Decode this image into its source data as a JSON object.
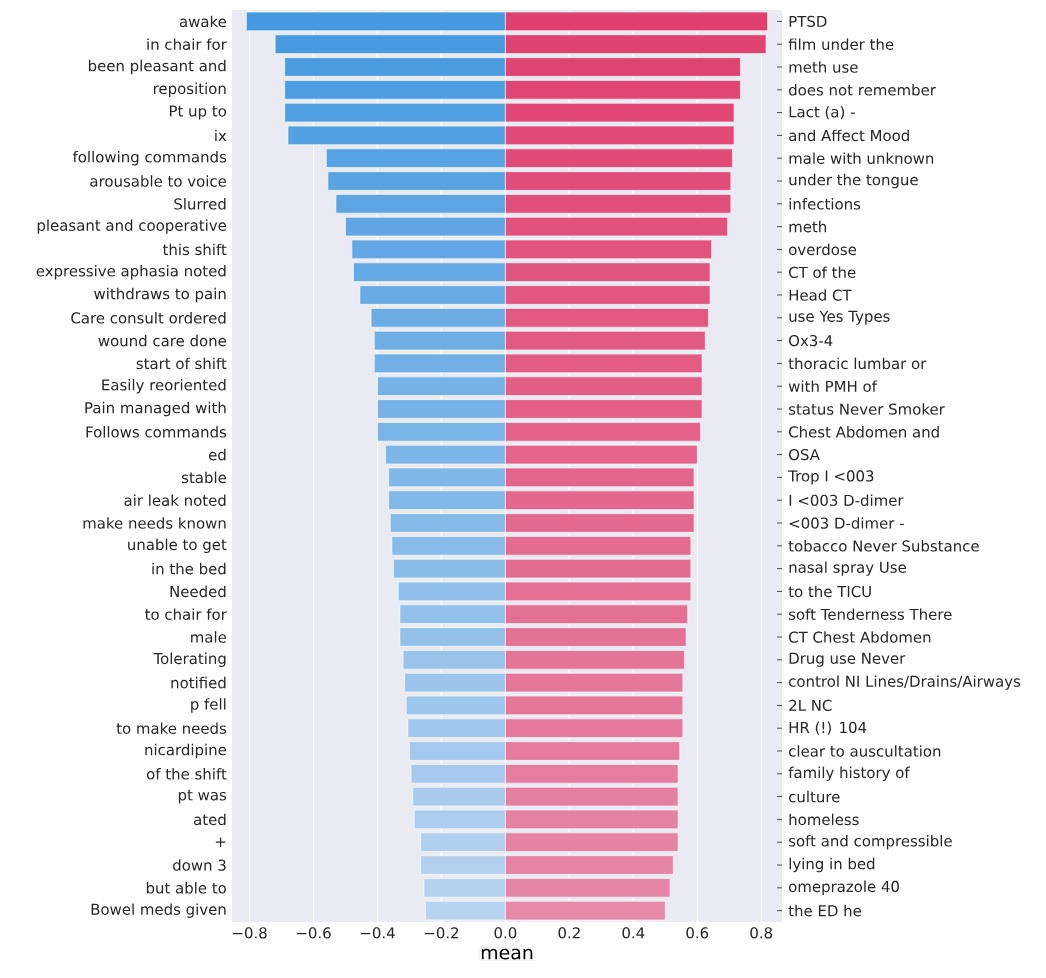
{
  "chart_data": {
    "type": "bar",
    "orientation": "horizontal",
    "xlabel": "mean",
    "categories": [
      "awake",
      "in chair for",
      "been pleasant and",
      "reposition",
      "Pt up to",
      "ix",
      "following commands",
      "arousable to voice",
      "Slurred",
      "pleasant and cooperative",
      "this shift",
      "expressive aphasia noted",
      "withdraws to pain",
      "Care consult ordered",
      "wound care done",
      "start of shift",
      "Easily reoriented",
      "Pain managed with",
      "Follows commands",
      "ed",
      "stable",
      "air leak noted",
      "make needs known",
      "unable to get",
      "in the bed",
      "Needed",
      "to chair for",
      "male",
      "Tolerating",
      "notified",
      "p fell",
      "to make needs",
      "nicardipine",
      "of the shift",
      "pt was",
      "ated",
      "+",
      "down 3",
      "but able to",
      "Bowel meds given"
    ],
    "y2_categories": [
      "PTSD",
      "film under the",
      "meth use",
      "does not remember",
      "Lact (a) -",
      "and Affect Mood",
      "male with unknown",
      "under the tongue",
      "infections",
      "meth",
      "overdose",
      "CT of the",
      "Head CT",
      "use Yes Types",
      "Ox3-4",
      "thoracic lumbar or",
      "with PMH of",
      "status Never Smoker",
      "Chest Abdomen and",
      "OSA",
      "Trop I <003",
      "I <003 D-dimer",
      "<003 D-dimer -",
      "tobacco Never Substance",
      "nasal spray Use",
      "to the TICU",
      "soft Tenderness There",
      "CT Chest Abdomen",
      "Drug use Never",
      "control NI Lines/Drains/Airways",
      "2L NC",
      "HR (!) 104",
      "clear to auscultation",
      "family history of",
      "culture",
      "homeless",
      "soft and compressible",
      "lying in bed",
      "omeprazole 40",
      "the ED he"
    ],
    "series": [
      {
        "values": [
          -0.81,
          -0.72,
          -0.69,
          -0.69,
          -0.69,
          -0.68,
          -0.56,
          -0.555,
          -0.53,
          -0.5,
          -0.48,
          -0.475,
          -0.455,
          -0.42,
          -0.41,
          -0.41,
          -0.4,
          -0.4,
          -0.4,
          -0.375,
          -0.365,
          -0.365,
          -0.36,
          -0.355,
          -0.35,
          -0.335,
          -0.33,
          -0.33,
          -0.32,
          -0.315,
          -0.31,
          -0.305,
          -0.3,
          -0.295,
          -0.29,
          -0.285,
          -0.265,
          -0.265,
          -0.255,
          -0.25
        ],
        "colors": [
          "#4499e0",
          "#479ae0",
          "#4a9ce1",
          "#4d9de1",
          "#509fe2",
          "#53a0e2",
          "#56a2e2",
          "#59a3e3",
          "#5ca5e3",
          "#5fa6e3",
          "#62a8e4",
          "#65a9e4",
          "#68abe5",
          "#6bace5",
          "#6eaee5",
          "#71afe6",
          "#74b1e6",
          "#76b2e7",
          "#79b4e7",
          "#7cb5e7",
          "#7fb7e8",
          "#82b8e8",
          "#85bae8",
          "#88bbe9",
          "#8bbde9",
          "#8ebeea",
          "#91c0ea",
          "#94c1ea",
          "#97c3eb",
          "#9ac4eb",
          "#9dc6ec",
          "#a0c7ec",
          "#a3c9ec",
          "#a6caed",
          "#a9cced",
          "#accded",
          "#afcfee",
          "#b2d0ee",
          "#b5d2ef",
          "#b8d3ef"
        ]
      },
      {
        "values": [
          0.82,
          0.815,
          0.735,
          0.735,
          0.715,
          0.715,
          0.71,
          0.705,
          0.705,
          0.695,
          0.645,
          0.64,
          0.64,
          0.635,
          0.625,
          0.615,
          0.615,
          0.615,
          0.61,
          0.6,
          0.59,
          0.59,
          0.59,
          0.58,
          0.58,
          0.58,
          0.57,
          0.565,
          0.56,
          0.555,
          0.555,
          0.555,
          0.545,
          0.54,
          0.54,
          0.54,
          0.54,
          0.525,
          0.515,
          0.5
        ],
        "colors": [
          "#e04070",
          "#e04271",
          "#e04473",
          "#e04674",
          "#e14776",
          "#e14977",
          "#e14b79",
          "#e14d7a",
          "#e14f7c",
          "#e1517d",
          "#e2537e",
          "#e25480",
          "#e25681",
          "#e25883",
          "#e25a84",
          "#e25c86",
          "#e25e87",
          "#e35f88",
          "#e3618a",
          "#e3638b",
          "#e3658d",
          "#e3678e",
          "#e36990",
          "#e36b91",
          "#e46c93",
          "#e46e94",
          "#e47095",
          "#e47297",
          "#e47498",
          "#e4769a",
          "#e5779b",
          "#e5799d",
          "#e57b9e",
          "#e57da0",
          "#e57fa1",
          "#e581a2",
          "#e583a4",
          "#e684a5",
          "#e686a7",
          "#e688a8"
        ]
      }
    ],
    "xlim": [
      -0.855,
      0.865
    ],
    "xticks": [
      {
        "value": -0.8,
        "label": "−0.8"
      },
      {
        "value": -0.6,
        "label": "−0.6"
      },
      {
        "value": -0.4,
        "label": "−0.4"
      },
      {
        "value": -0.2,
        "label": "−0.2"
      },
      {
        "value": 0,
        "label": "0.0"
      },
      {
        "value": 0.2,
        "label": "0.2"
      },
      {
        "value": 0.4,
        "label": "0.4"
      },
      {
        "value": 0.6,
        "label": "0.6"
      },
      {
        "value": 0.8,
        "label": "0.8"
      }
    ],
    "grid": "x",
    "stacked": true
  }
}
